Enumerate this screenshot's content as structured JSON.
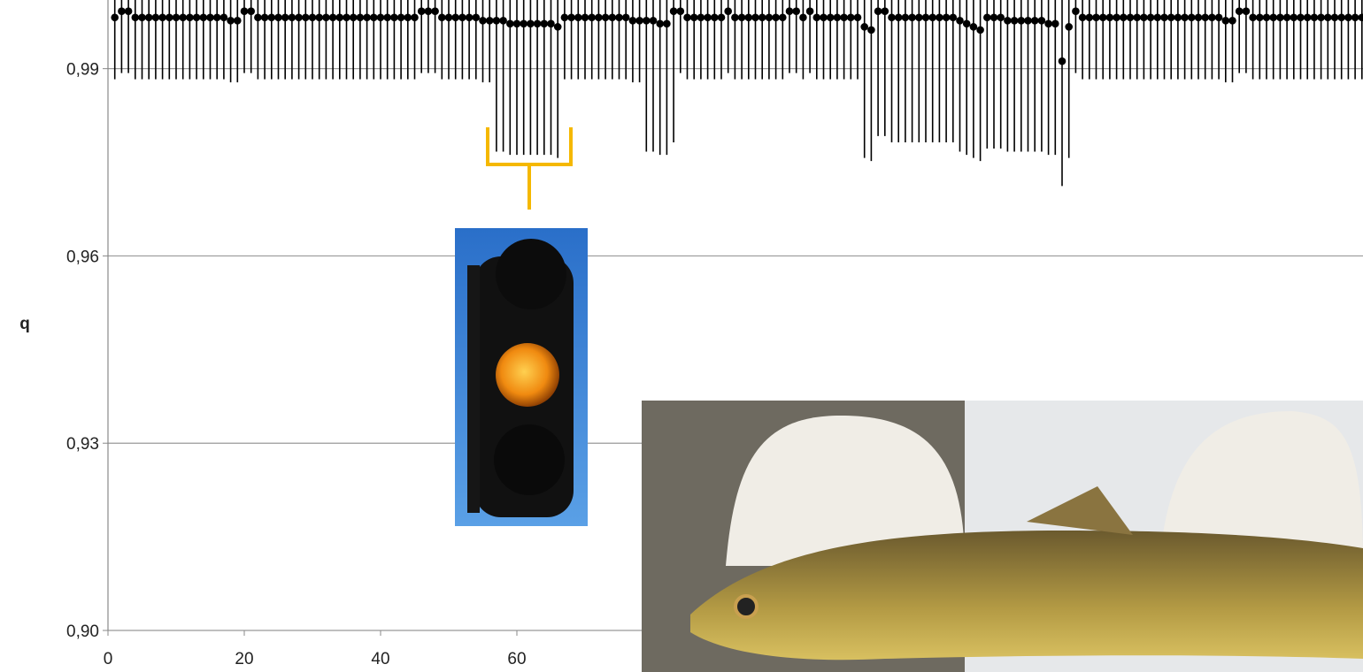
{
  "chart_data": {
    "type": "scatter",
    "ylabel": "q",
    "x": [
      1,
      2,
      3,
      4,
      5,
      6,
      7,
      8,
      9,
      10,
      11,
      12,
      13,
      14,
      15,
      16,
      17,
      18,
      19,
      20,
      21,
      22,
      23,
      24,
      25,
      26,
      27,
      28,
      29,
      30,
      31,
      32,
      33,
      34,
      35,
      36,
      37,
      38,
      39,
      40,
      41,
      42,
      43,
      44,
      45,
      46,
      47,
      48,
      49,
      50,
      51,
      52,
      53,
      54,
      55,
      56,
      57,
      58,
      59,
      60,
      61,
      62,
      63,
      64,
      65,
      66,
      67,
      68,
      69,
      70,
      71,
      72,
      73,
      74,
      75,
      76,
      77,
      78,
      79,
      80,
      81,
      82,
      83,
      84,
      85,
      86,
      87,
      88,
      89,
      90,
      91,
      92,
      93,
      94,
      95,
      96,
      97,
      98,
      99,
      100,
      101,
      102,
      103,
      104,
      105,
      106,
      107,
      108,
      109,
      110,
      111,
      112,
      113,
      114,
      115,
      116,
      117,
      118,
      119,
      120,
      121,
      122,
      123,
      124,
      125,
      126,
      127,
      128,
      129,
      130,
      131,
      132,
      133,
      134,
      135,
      136,
      137,
      138,
      139,
      140,
      141,
      142,
      143,
      144,
      145,
      146,
      147,
      148,
      149,
      150,
      151,
      152,
      153,
      154,
      155,
      156,
      157,
      158,
      159,
      160,
      161,
      162,
      163,
      164,
      165,
      166,
      167,
      168,
      169,
      170,
      171,
      172,
      173,
      174,
      175,
      176,
      177,
      178,
      179,
      180,
      181,
      182,
      183,
      184
    ],
    "series": [
      {
        "color": "#000000",
        "values": [
          0.9982,
          0.9992,
          0.9992,
          0.9982,
          0.9982,
          0.9982,
          0.9982,
          0.9982,
          0.9982,
          0.9982,
          0.9982,
          0.9982,
          0.9982,
          0.9982,
          0.9982,
          0.9982,
          0.9982,
          0.9977,
          0.9977,
          0.9992,
          0.9992,
          0.9982,
          0.9982,
          0.9982,
          0.9982,
          0.9982,
          0.9982,
          0.9982,
          0.9982,
          0.9982,
          0.9982,
          0.9982,
          0.9982,
          0.9982,
          0.9982,
          0.9982,
          0.9982,
          0.9982,
          0.9982,
          0.9982,
          0.9982,
          0.9982,
          0.9982,
          0.9982,
          0.9982,
          0.9992,
          0.9992,
          0.9992,
          0.9982,
          0.9982,
          0.9982,
          0.9982,
          0.9982,
          0.9982,
          0.9977,
          0.9977,
          0.9977,
          0.9977,
          0.9972,
          0.9972,
          0.9972,
          0.9972,
          0.9972,
          0.9972,
          0.9972,
          0.9967,
          0.9982,
          0.9982,
          0.9982,
          0.9982,
          0.9982,
          0.9982,
          0.9982,
          0.9982,
          0.9982,
          0.9982,
          0.9977,
          0.9977,
          0.9977,
          0.9977,
          0.9972,
          0.9972,
          0.9992,
          0.9992,
          0.9982,
          0.9982,
          0.9982,
          0.9982,
          0.9982,
          0.9982,
          0.9992,
          0.9982,
          0.9982,
          0.9982,
          0.9982,
          0.9982,
          0.9982,
          0.9982,
          0.9982,
          0.9992,
          0.9992,
          0.9982,
          0.9992,
          0.9982,
          0.9982,
          0.9982,
          0.9982,
          0.9982,
          0.9982,
          0.9982,
          0.9967,
          0.9962,
          0.9992,
          0.9992,
          0.9982,
          0.9982,
          0.9982,
          0.9982,
          0.9982,
          0.9982,
          0.9982,
          0.9982,
          0.9982,
          0.9982,
          0.9977,
          0.9972,
          0.9967,
          0.9962,
          0.9982,
          0.9982,
          0.9982,
          0.9977,
          0.9977,
          0.9977,
          0.9977,
          0.9977,
          0.9977,
          0.9972,
          0.9972,
          0.9912,
          0.9967,
          0.9992,
          0.9982,
          0.9982,
          0.9982,
          0.9982,
          0.9982,
          0.9982,
          0.9982,
          0.9982,
          0.9982,
          0.9982,
          0.9982,
          0.9982,
          0.9982,
          0.9982,
          0.9982,
          0.9982,
          0.9982,
          0.9982,
          0.9982,
          0.9982,
          0.9982,
          0.9977,
          0.9977,
          0.9992,
          0.9992,
          0.9982,
          0.9982,
          0.9982,
          0.9982,
          0.9982,
          0.9982,
          0.9982,
          0.9982,
          0.9982,
          0.9982,
          0.9982,
          0.9982,
          0.9982,
          0.9982,
          0.9982,
          0.9982,
          0.9982
        ],
        "errors": [
          0.0099,
          0.0099,
          0.0099,
          0.0099,
          0.0099,
          0.0099,
          0.0099,
          0.0099,
          0.0099,
          0.0099,
          0.0099,
          0.0099,
          0.0099,
          0.0099,
          0.0099,
          0.0099,
          0.0099,
          0.0099,
          0.0099,
          0.0099,
          0.0099,
          0.0099,
          0.0099,
          0.0099,
          0.0099,
          0.0099,
          0.0099,
          0.0099,
          0.0099,
          0.0099,
          0.0099,
          0.0099,
          0.0099,
          0.0099,
          0.0099,
          0.0099,
          0.0099,
          0.0099,
          0.0099,
          0.0099,
          0.0099,
          0.0099,
          0.0099,
          0.0099,
          0.0099,
          0.0099,
          0.0099,
          0.0099,
          0.0099,
          0.0099,
          0.0099,
          0.0099,
          0.0099,
          0.0099,
          0.0099,
          0.0099,
          0.021,
          0.021,
          0.021,
          0.021,
          0.021,
          0.021,
          0.021,
          0.021,
          0.021,
          0.021,
          0.0099,
          0.0099,
          0.0099,
          0.0099,
          0.0099,
          0.0099,
          0.0099,
          0.0099,
          0.0099,
          0.0099,
          0.0099,
          0.0099,
          0.021,
          0.021,
          0.021,
          0.021,
          0.021,
          0.0099,
          0.0099,
          0.0099,
          0.0099,
          0.0099,
          0.0099,
          0.0099,
          0.0099,
          0.0099,
          0.0099,
          0.0099,
          0.0099,
          0.0099,
          0.0099,
          0.0099,
          0.0099,
          0.0099,
          0.0099,
          0.0099,
          0.0099,
          0.0099,
          0.0099,
          0.0099,
          0.0099,
          0.0099,
          0.0099,
          0.0099,
          0.021,
          0.021,
          0.02,
          0.02,
          0.02,
          0.02,
          0.02,
          0.02,
          0.02,
          0.02,
          0.02,
          0.02,
          0.02,
          0.02,
          0.021,
          0.021,
          0.021,
          0.021,
          0.021,
          0.021,
          0.021,
          0.021,
          0.021,
          0.021,
          0.021,
          0.021,
          0.021,
          0.021,
          0.021,
          0.02,
          0.021,
          0.0099,
          0.0099,
          0.0099,
          0.0099,
          0.0099,
          0.0099,
          0.0099,
          0.0099,
          0.0099,
          0.0099,
          0.0099,
          0.0099,
          0.0099,
          0.0099,
          0.0099,
          0.0099,
          0.0099,
          0.0099,
          0.0099,
          0.0099,
          0.0099,
          0.0099,
          0.0099,
          0.0099,
          0.0099,
          0.0099,
          0.0099,
          0.0099,
          0.0099,
          0.0099,
          0.0099,
          0.0099,
          0.0099,
          0.0099,
          0.0099,
          0.0099,
          0.0099,
          0.0099,
          0.0099,
          0.0099,
          0.0099,
          0.0099,
          0.0099
        ]
      }
    ],
    "xlim": [
      0,
      184
    ],
    "xticks": [
      0,
      20,
      40,
      60
    ],
    "ylim": [
      0.9,
      1.001
    ],
    "yticks": [
      {
        "value": 0.9,
        "label": "0,90"
      },
      {
        "value": 0.93,
        "label": "0,93"
      },
      {
        "value": 0.96,
        "label": "0,96"
      },
      {
        "value": 0.99,
        "label": "0,99"
      }
    ],
    "grid": true
  }
}
